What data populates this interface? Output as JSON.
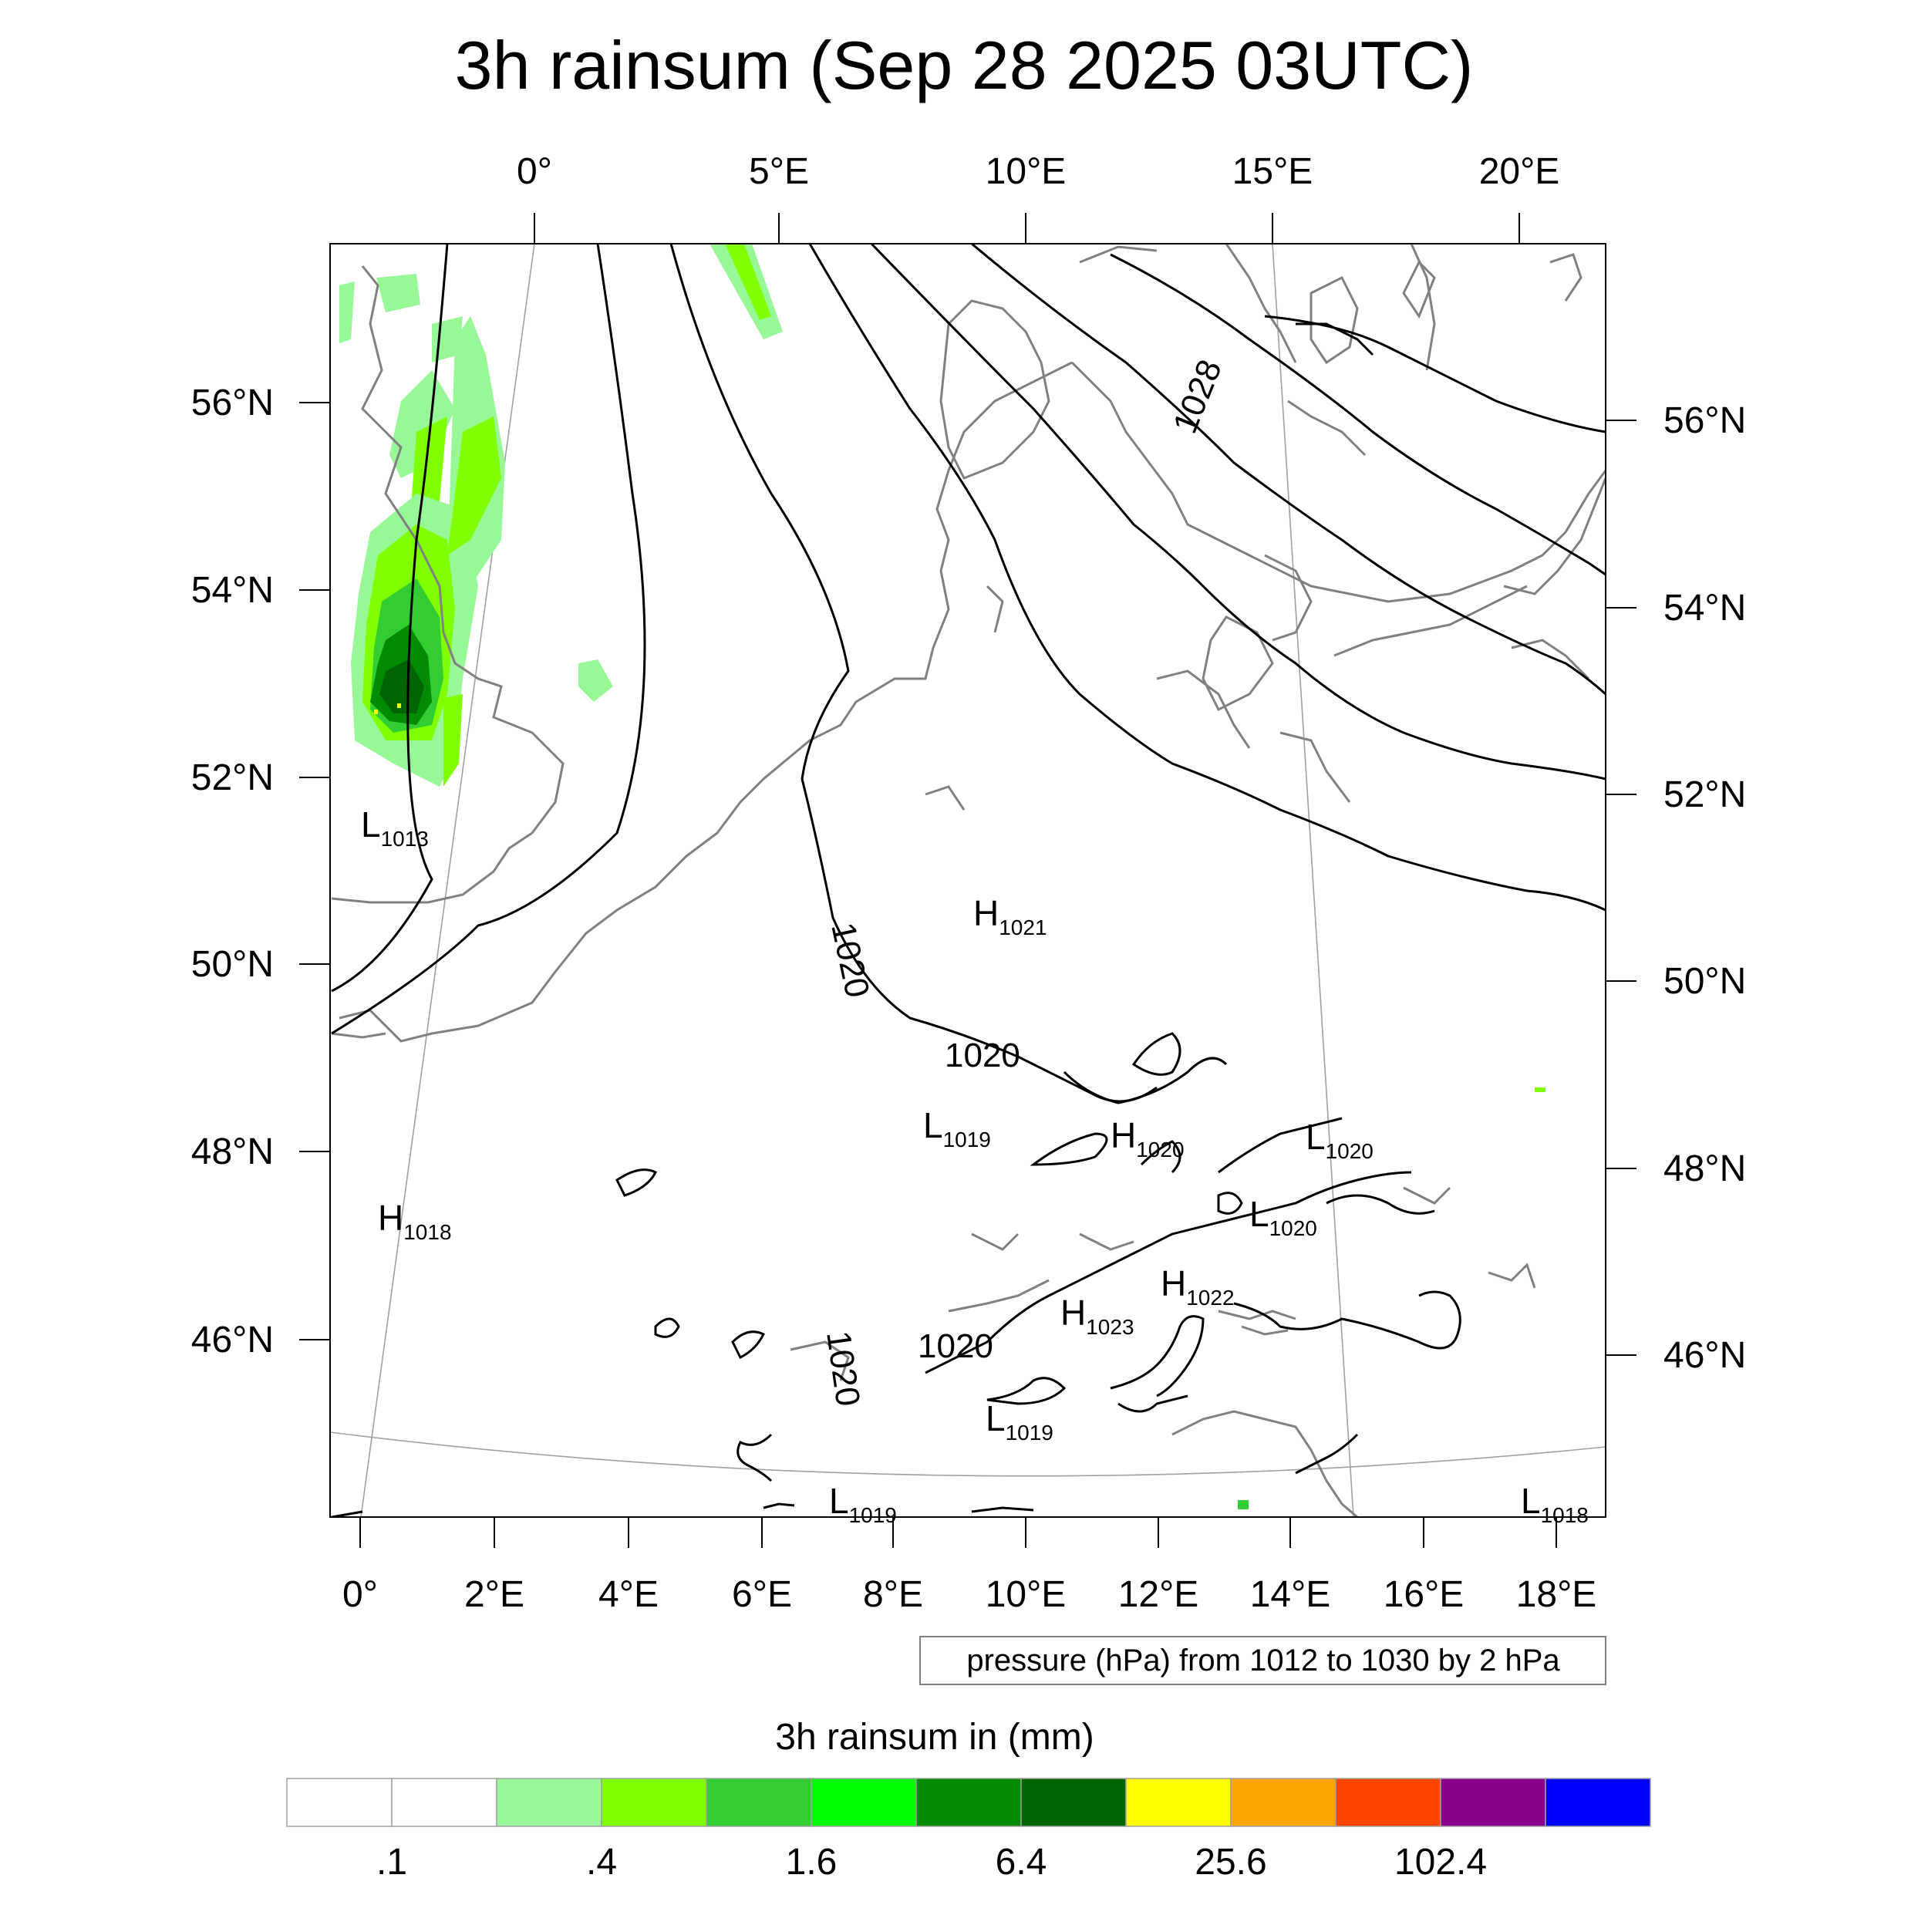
{
  "title": "3h rainsum (Sep 28 2025 03UTC)",
  "top_lon_labels": [
    "0°",
    "5°E",
    "10°E",
    "15°E",
    "20°E"
  ],
  "bottom_lon_labels": [
    "0°",
    "2°E",
    "4°E",
    "6°E",
    "8°E",
    "10°E",
    "12°E",
    "14°E",
    "16°E",
    "18°E"
  ],
  "left_lat_labels": [
    "56°N",
    "54°N",
    "52°N",
    "50°N",
    "48°N",
    "46°N"
  ],
  "right_lat_labels": [
    "56°N",
    "54°N",
    "52°N",
    "50°N",
    "48°N",
    "46°N"
  ],
  "pressure_centers": [
    {
      "letter": "L",
      "value": "1013"
    },
    {
      "letter": "H",
      "value": "1021"
    },
    {
      "letter": "L",
      "value": "1019"
    },
    {
      "letter": "H",
      "value": "1020"
    },
    {
      "letter": "L",
      "value": "1020"
    },
    {
      "letter": "H",
      "value": "1018"
    },
    {
      "letter": "L",
      "value": "1020"
    },
    {
      "letter": "H",
      "value": "1022"
    },
    {
      "letter": "H",
      "value": "1023"
    },
    {
      "letter": "L",
      "value": "1019"
    },
    {
      "letter": "L",
      "value": "1019"
    },
    {
      "letter": "L",
      "value": "1018"
    }
  ],
  "contour_labels": [
    "1028",
    "1020",
    "1020",
    "1020",
    "1020"
  ],
  "pressure_note": "pressure (hPa) from 1012 to 1030 by 2 hPa",
  "colorbar": {
    "title": "3h rainsum in (mm)",
    "colors": [
      "#ffffff",
      "#ffffff",
      "#98f898",
      "#80ff00",
      "#32cd32",
      "#00ff00",
      "#008b00",
      "#006400",
      "#ffff00",
      "#ffa500",
      "#ff4500",
      "#8b008b",
      "#0000ff"
    ],
    "tick_labels": [
      ".1",
      ".4",
      "1.6",
      "6.4",
      "25.6",
      "102.4"
    ]
  },
  "colors": {
    "coastline": "#808080",
    "isobar": "#000000",
    "graticule": "#a0a0a0"
  }
}
